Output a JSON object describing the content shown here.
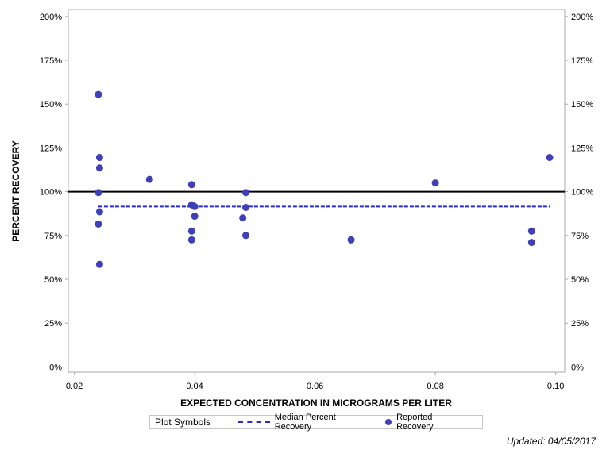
{
  "chart_data": {
    "type": "scatter",
    "xlabel": "EXPECTED CONCENTRATION IN MICROGRAMS PER LITER",
    "ylabel": "PERCENT RECOVERY",
    "xlim": [
      0.019,
      0.1015
    ],
    "ylim": [
      -3,
      204
    ],
    "x_ticks": [
      0.02,
      0.04,
      0.06,
      0.08,
      0.1
    ],
    "x_tick_labels": [
      "0.02",
      "0.04",
      "0.06",
      "0.08",
      "0.10"
    ],
    "y_ticks": [
      0,
      25,
      50,
      75,
      100,
      125,
      150,
      175,
      200
    ],
    "y_tick_labels": [
      "0%",
      "25%",
      "50%",
      "75%",
      "100%",
      "125%",
      "150%",
      "175%",
      "200%"
    ],
    "grid": true,
    "reference_line": 100,
    "series": [
      {
        "name": "Median Percent Recovery",
        "kind": "dashed-line",
        "color": "#2b2bdc",
        "x": [
          0.024,
          0.099
        ],
        "values": [
          91.5,
          91.5
        ]
      },
      {
        "name": "Reported Recovery",
        "kind": "points",
        "color": "#3f3fb8",
        "points": [
          [
            0.024,
            155.5
          ],
          [
            0.0242,
            119.5
          ],
          [
            0.0242,
            113.5
          ],
          [
            0.024,
            99.5
          ],
          [
            0.0242,
            88.5
          ],
          [
            0.024,
            81.5
          ],
          [
            0.0242,
            58.5
          ],
          [
            0.0325,
            107
          ],
          [
            0.0395,
            104
          ],
          [
            0.0395,
            92.5
          ],
          [
            0.04,
            91.5
          ],
          [
            0.04,
            86
          ],
          [
            0.0395,
            77.5
          ],
          [
            0.0395,
            72.5
          ],
          [
            0.0485,
            99.5
          ],
          [
            0.0485,
            91
          ],
          [
            0.048,
            85
          ],
          [
            0.0485,
            75
          ],
          [
            0.066,
            72.5
          ],
          [
            0.08,
            105
          ],
          [
            0.096,
            77.5
          ],
          [
            0.096,
            71
          ],
          [
            0.099,
            119.5
          ]
        ]
      }
    ],
    "legend_position": "bottom"
  },
  "legend": {
    "title": "Plot Symbols",
    "median_label": "Median Percent Recovery",
    "reported_label": "Reported Recovery"
  },
  "footer": {
    "updated": "Updated: 04/05/2017"
  }
}
